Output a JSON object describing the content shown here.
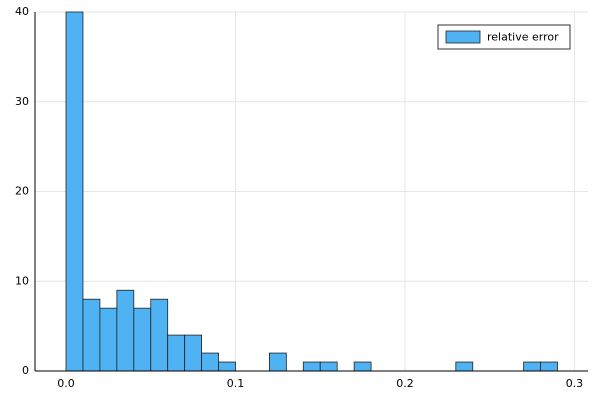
{
  "chart_data": {
    "type": "histogram",
    "bins": [
      0,
      0.01,
      0.02,
      0.03,
      0.04,
      0.05,
      0.06,
      0.07,
      0.08,
      0.09,
      0.1,
      0.11,
      0.12,
      0.13,
      0.14,
      0.15,
      0.16,
      0.17,
      0.18,
      0.19,
      0.2,
      0.21,
      0.22,
      0.23,
      0.24,
      0.25,
      0.26,
      0.27,
      0.28,
      0.29
    ],
    "series": [
      {
        "name": "relative error",
        "color": "#4fb2f2",
        "values": [
          40,
          8,
          7,
          9,
          7,
          8,
          4,
          4,
          2,
          1,
          0,
          0,
          2,
          0,
          1,
          1,
          0,
          1,
          0,
          0,
          0,
          0,
          0,
          1,
          0,
          0,
          0,
          1,
          1
        ]
      }
    ],
    "xlim": [
      -0.0183,
      0.308
    ],
    "xticks": [
      {
        "value": 0,
        "label": "0.0"
      },
      0.1,
      0.2,
      0.3
    ],
    "ylim": [
      0,
      40
    ],
    "yticks": [
      0,
      10,
      20,
      30,
      40
    ],
    "grid": true,
    "legend": "top-right"
  }
}
